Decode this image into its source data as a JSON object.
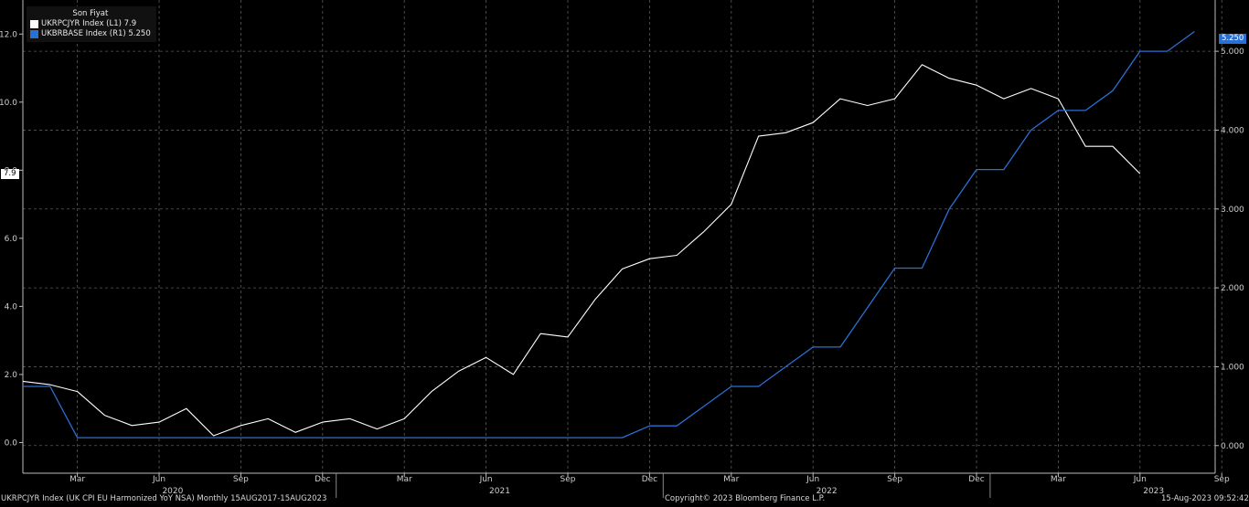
{
  "legend": {
    "title": "Son Fiyat",
    "items": [
      {
        "label": "UKRPCJYR Index  (L1) 7.9",
        "color": "#ffffff"
      },
      {
        "label": "UKBRBASE Index  (R1) 5.250",
        "color": "#2a6fd6"
      }
    ]
  },
  "last_value_tags": {
    "left": "7.9",
    "right": "5.250"
  },
  "footer": {
    "left": "UKRPCJYR Index (UK CPI EU Harmonized YoY NSA)  Monthly 15AUG2017-15AUG2023",
    "center": "Copyright© 2023 Bloomberg Finance L.P.",
    "right": "15-Aug-2023 09:52:42"
  },
  "chart_data": {
    "type": "line",
    "x": [
      "2020-01",
      "2020-02",
      "2020-03",
      "2020-04",
      "2020-05",
      "2020-06",
      "2020-07",
      "2020-08",
      "2020-09",
      "2020-10",
      "2020-11",
      "2020-12",
      "2021-01",
      "2021-02",
      "2021-03",
      "2021-04",
      "2021-05",
      "2021-06",
      "2021-07",
      "2021-08",
      "2021-09",
      "2021-10",
      "2021-11",
      "2021-12",
      "2022-01",
      "2022-02",
      "2022-03",
      "2022-04",
      "2022-05",
      "2022-06",
      "2022-07",
      "2022-08",
      "2022-09",
      "2022-10",
      "2022-11",
      "2022-12",
      "2023-01",
      "2023-02",
      "2023-03",
      "2023-04",
      "2023-05",
      "2023-06",
      "2023-07",
      "2023-08"
    ],
    "x_tick_labels": [
      "Mar",
      "Jun",
      "Sep",
      "Dec",
      "Mar",
      "Jun",
      "Sep",
      "Dec",
      "Mar",
      "Jun",
      "Sep",
      "Dec",
      "Mar",
      "Jun",
      "Sep"
    ],
    "x_tick_dates": [
      "2020-03",
      "2020-06",
      "2020-09",
      "2020-12",
      "2021-03",
      "2021-06",
      "2021-09",
      "2021-12",
      "2022-03",
      "2022-06",
      "2022-09",
      "2022-12",
      "2023-03",
      "2023-06",
      "2023-09"
    ],
    "year_labels": [
      "2020",
      "2021",
      "2022",
      "2023"
    ],
    "series": [
      {
        "name": "UKRPCJYR Index",
        "axis": "left",
        "color": "#ffffff",
        "values": [
          1.8,
          1.7,
          1.5,
          0.8,
          0.5,
          0.6,
          1.0,
          0.2,
          0.5,
          0.7,
          0.3,
          0.6,
          0.7,
          0.4,
          0.7,
          1.5,
          2.1,
          2.5,
          2.0,
          3.2,
          3.1,
          4.2,
          5.1,
          5.4,
          5.5,
          6.2,
          7.0,
          9.0,
          9.1,
          9.4,
          10.1,
          9.9,
          10.1,
          11.1,
          10.7,
          10.5,
          10.1,
          10.4,
          10.1,
          8.7,
          8.7,
          7.9,
          null,
          null
        ]
      },
      {
        "name": "UKBRBASE Index",
        "axis": "right",
        "color": "#2a6fd6",
        "values": [
          0.75,
          0.75,
          0.1,
          0.1,
          0.1,
          0.1,
          0.1,
          0.1,
          0.1,
          0.1,
          0.1,
          0.1,
          0.1,
          0.1,
          0.1,
          0.1,
          0.1,
          0.1,
          0.1,
          0.1,
          0.1,
          0.1,
          0.1,
          0.25,
          0.25,
          0.5,
          0.75,
          0.75,
          1.0,
          1.25,
          1.25,
          1.75,
          2.25,
          2.25,
          3.0,
          3.5,
          3.5,
          4.0,
          4.25,
          4.25,
          4.5,
          5.0,
          5.0,
          5.25
        ]
      }
    ],
    "y_left": {
      "ticks": [
        "0.0",
        "2.0",
        "4.0",
        "6.0",
        "8.0",
        "10.0",
        "12.0"
      ],
      "tick_values": [
        0,
        2,
        4,
        6,
        8,
        10,
        12
      ],
      "range": [
        -0.9,
        13.0
      ]
    },
    "y_right": {
      "ticks": [
        "0.000",
        "1.000",
        "2.000",
        "3.000",
        "4.000",
        "5.000"
      ],
      "tick_values": [
        0,
        1,
        2,
        3,
        4,
        5
      ],
      "range": [
        -0.35,
        5.65
      ]
    },
    "grid": true
  }
}
